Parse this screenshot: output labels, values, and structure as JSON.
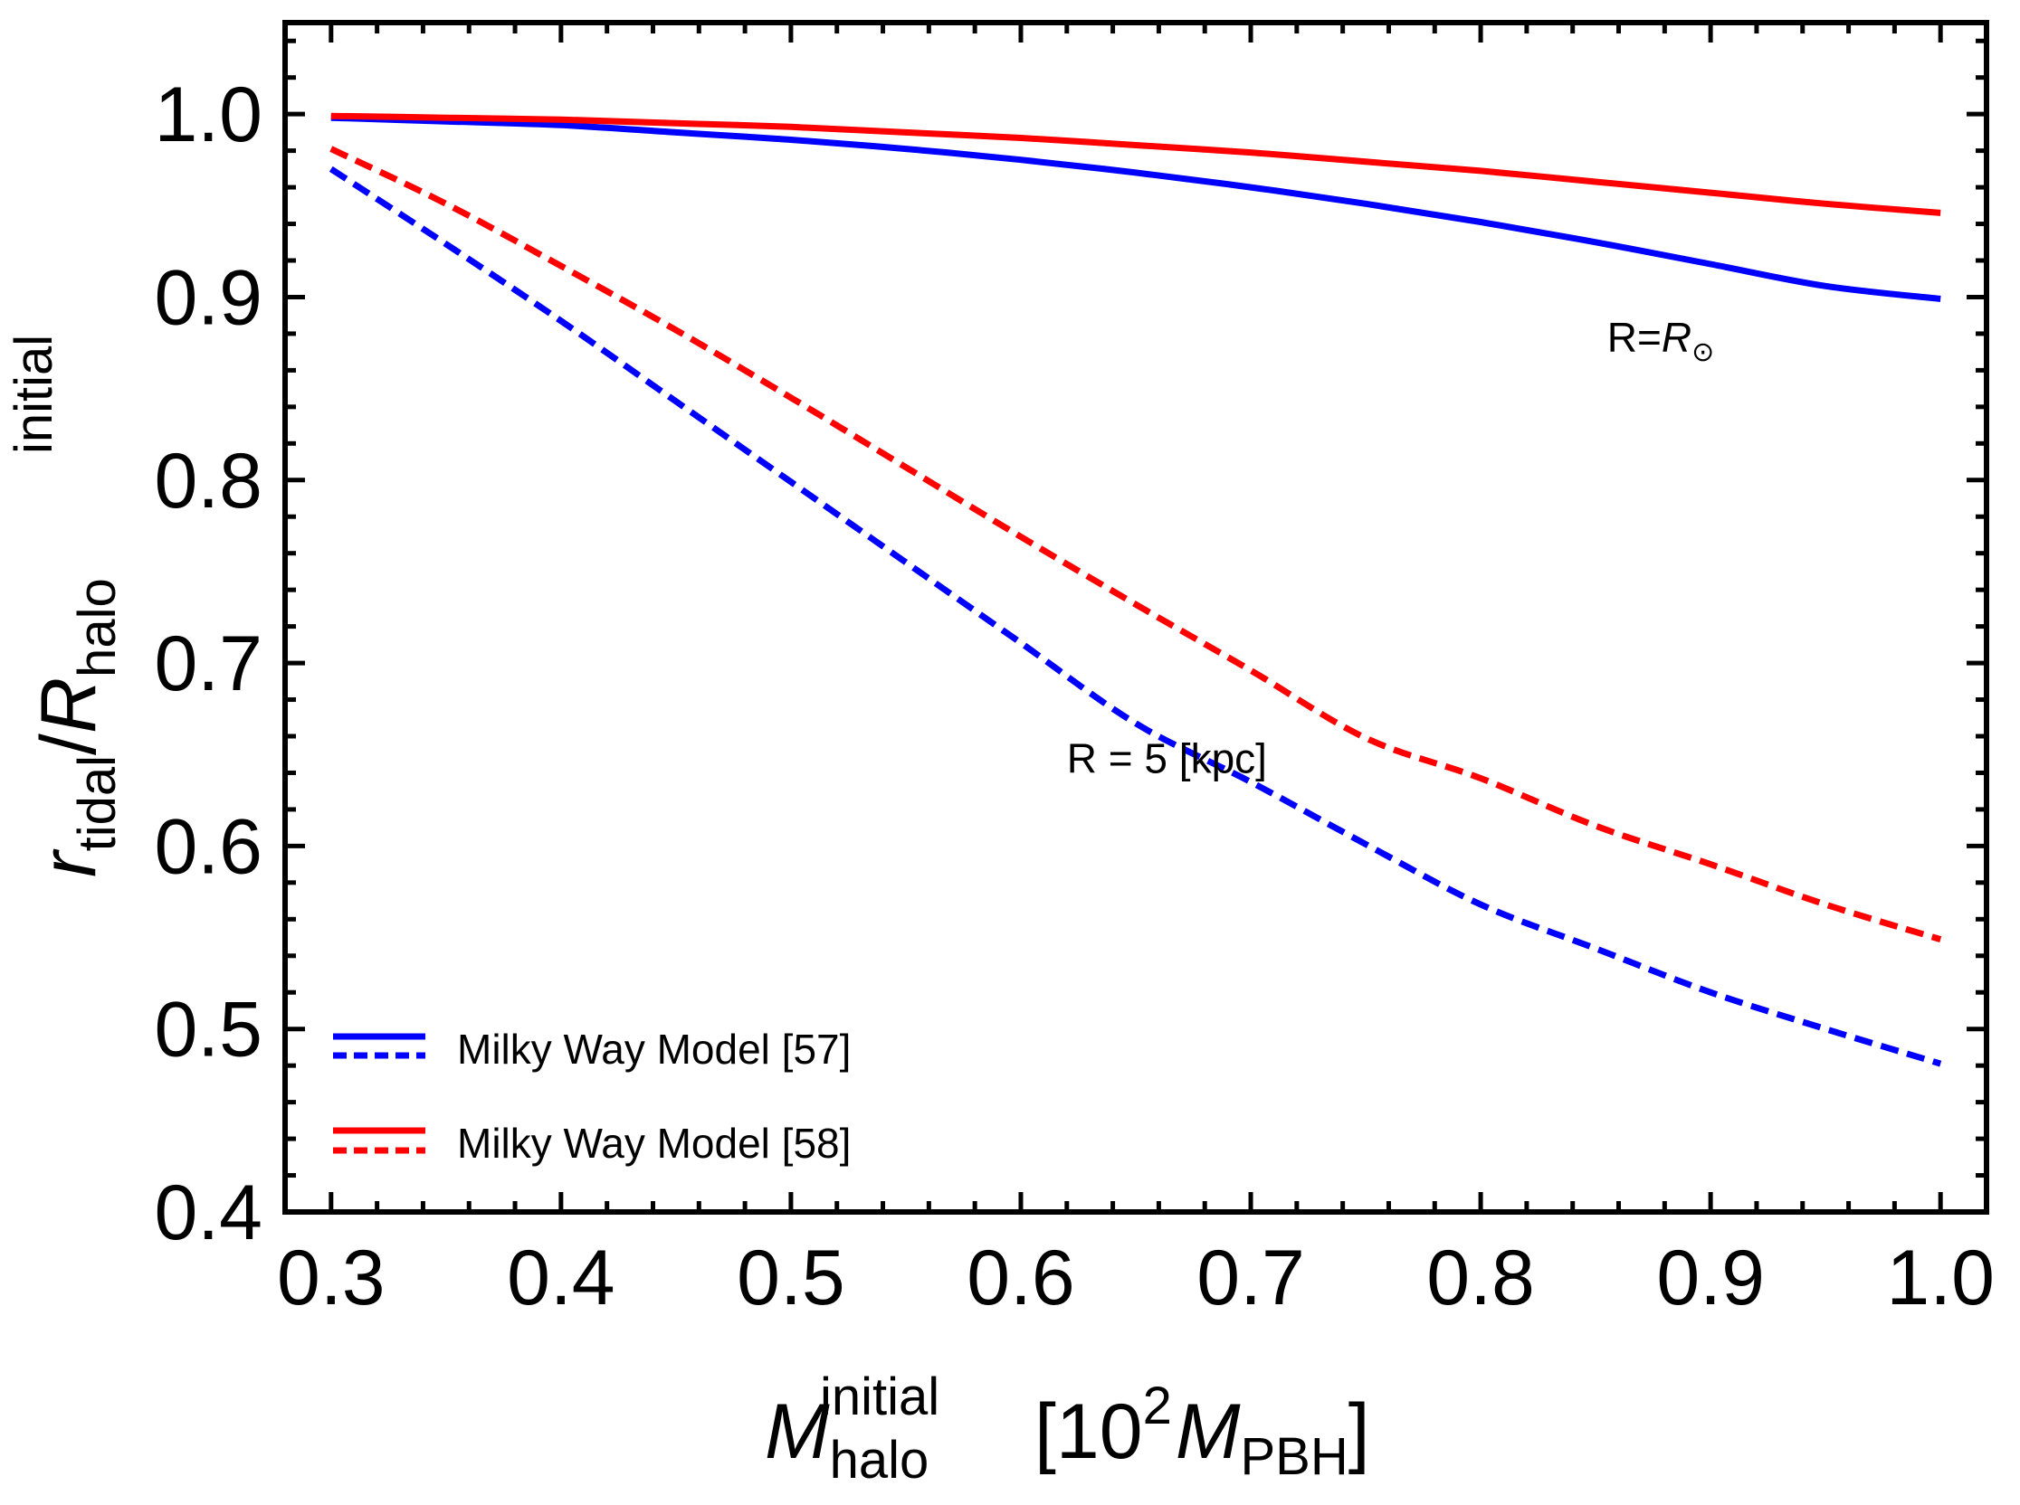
{
  "chart_data": {
    "type": "line",
    "title": "",
    "xlabel": {
      "symbol": "M",
      "subscript": "halo",
      "superscript": "initial",
      "bracket_open": "[10",
      "power": "2",
      "unit_symbol": "M",
      "unit_subscript": "PBH",
      "bracket_close": "]"
    },
    "ylabel": {
      "numerator_symbol": "r",
      "numerator_subscript": "tidal",
      "slash": "/",
      "denominator_symbol": "R",
      "denominator_subscript": "halo",
      "denominator_superscript": "initial"
    },
    "xlim": [
      0.28,
      1.02
    ],
    "ylim": [
      0.4,
      1.05
    ],
    "xticks": [
      0.3,
      0.4,
      0.5,
      0.6,
      0.7,
      0.8,
      0.9,
      1.0
    ],
    "xtick_labels": [
      "0.3",
      "0.4",
      "0.5",
      "0.6",
      "0.7",
      "0.8",
      "0.9",
      "1.0"
    ],
    "yticks": [
      0.4,
      0.5,
      0.6,
      0.7,
      0.8,
      0.9,
      1.0
    ],
    "ytick_labels": [
      "0.4",
      "0.5",
      "0.6",
      "0.7",
      "0.8",
      "0.9",
      "1.0"
    ],
    "grid": false,
    "legend_position": "bottom-left",
    "x": [
      0.3,
      0.35,
      0.4,
      0.45,
      0.5,
      0.55,
      0.6,
      0.65,
      0.7,
      0.75,
      0.8,
      0.85,
      0.9,
      0.95,
      1.0
    ],
    "series": [
      {
        "name": "Milky Way Model [57], R = R⊙",
        "color": "#0000ff",
        "dash": "solid",
        "values": [
          0.998,
          0.996,
          0.994,
          0.99,
          0.986,
          0.981,
          0.975,
          0.968,
          0.96,
          0.951,
          0.941,
          0.93,
          0.918,
          0.906,
          0.899
        ]
      },
      {
        "name": "Milky Way Model [58], R = R⊙",
        "color": "#ff0000",
        "dash": "solid",
        "values": [
          0.999,
          0.998,
          0.997,
          0.995,
          0.993,
          0.99,
          0.987,
          0.983,
          0.979,
          0.974,
          0.969,
          0.963,
          0.957,
          0.951,
          0.946
        ]
      },
      {
        "name": "Milky Way Model [57], R = 5 kpc",
        "color": "#0000ff",
        "dash": "dashed",
        "values": [
          0.97,
          0.929,
          0.887,
          0.843,
          0.799,
          0.755,
          0.711,
          0.667,
          0.635,
          0.601,
          0.568,
          0.544,
          0.52,
          0.5,
          0.481
        ]
      },
      {
        "name": "Milky Way Model [58], R = 5 kpc",
        "color": "#ff0000",
        "dash": "dashed",
        "values": [
          0.981,
          0.951,
          0.917,
          0.882,
          0.845,
          0.807,
          0.769,
          0.732,
          0.696,
          0.659,
          0.637,
          0.611,
          0.59,
          0.568,
          0.549
        ]
      }
    ],
    "annotations": [
      {
        "id": "r-sun",
        "prefix": "R=",
        "symbol": "R",
        "subscript": "⊙",
        "x": 0.855,
        "y": 0.87
      },
      {
        "id": "r-5kpc",
        "text": "R = 5 [kpc]",
        "x": 0.62,
        "y": 0.64
      }
    ],
    "legend": [
      {
        "label": "Milky Way Model [57]",
        "color": "#0000ff"
      },
      {
        "label": "Milky Way Model [58]",
        "color": "#ff0000"
      }
    ]
  }
}
